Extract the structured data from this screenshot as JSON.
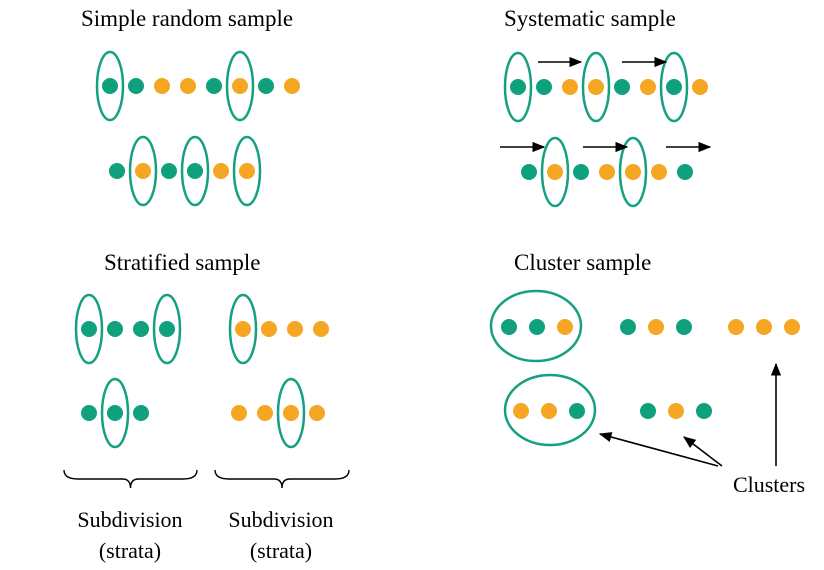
{
  "colors": {
    "teal": "#0FA07E",
    "orange": "#F5A623",
    "outline": "#14A081",
    "ink": "#000000"
  },
  "panels": {
    "simple_random": {
      "title": "Simple random sample",
      "rows": [
        {
          "dots": [
            "teal",
            "teal",
            "orange",
            "orange",
            "teal",
            "orange",
            "teal",
            "orange"
          ],
          "circled": [
            0,
            5
          ]
        },
        {
          "dots": [
            "teal",
            "orange",
            "teal",
            "teal",
            "orange",
            "orange"
          ],
          "circled": [
            1,
            3,
            5
          ]
        }
      ]
    },
    "systematic": {
      "title": "Systematic sample",
      "rows": [
        {
          "dots": [
            "teal",
            "teal",
            "orange",
            "orange",
            "teal",
            "orange",
            "teal",
            "orange"
          ],
          "circled": [
            0,
            3,
            6
          ],
          "arrows": 2
        },
        {
          "dots": [
            "teal",
            "orange",
            "teal",
            "orange",
            "orange",
            "orange",
            "teal"
          ],
          "circled": [
            1,
            4
          ],
          "arrows": 3
        }
      ]
    },
    "stratified": {
      "title": "Stratified sample",
      "groups": [
        {
          "label": "Subdivision",
          "sublabel": "(strata)",
          "rows": [
            {
              "dots": [
                "teal",
                "teal",
                "teal",
                "teal"
              ],
              "circled": [
                0,
                3
              ]
            },
            {
              "dots": [
                "teal",
                "teal",
                "teal"
              ],
              "circled": [
                1
              ]
            }
          ]
        },
        {
          "label": "Subdivision",
          "sublabel": "(strata)",
          "rows": [
            {
              "dots": [
                "orange",
                "orange",
                "orange",
                "orange"
              ],
              "circled": [
                0
              ]
            },
            {
              "dots": [
                "orange",
                "orange",
                "orange",
                "orange"
              ],
              "circled": [
                2
              ]
            }
          ]
        }
      ]
    },
    "cluster": {
      "title": "Cluster sample",
      "clusters": [
        {
          "dots": [
            "teal",
            "teal",
            "orange"
          ],
          "selected": true
        },
        {
          "dots": [
            "teal",
            "orange",
            "teal"
          ],
          "selected": false
        },
        {
          "dots": [
            "orange",
            "orange",
            "orange"
          ],
          "selected": false
        },
        {
          "dots": [
            "orange",
            "orange",
            "teal"
          ],
          "selected": true
        },
        {
          "dots": [
            "teal",
            "orange",
            "teal"
          ],
          "selected": false
        }
      ],
      "label": "Clusters"
    }
  }
}
